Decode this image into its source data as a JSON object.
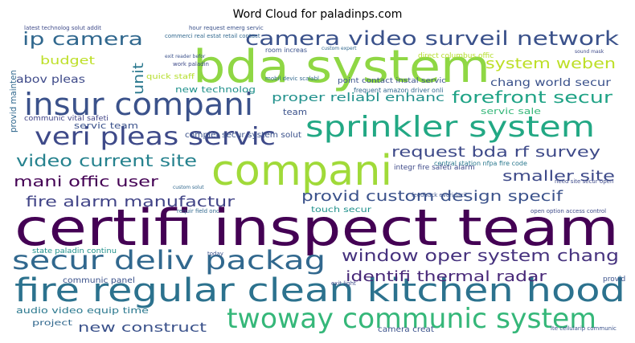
{
  "chart_data": {
    "type": "wordcloud",
    "title": "Word Cloud for paladinps.com",
    "words": [
      {
        "text": "certifi inspect team",
        "color": "#440154"
      },
      {
        "text": "bda system",
        "color": "#8fd744"
      },
      {
        "text": "compani",
        "color": "#a0da39"
      },
      {
        "text": "fire regular clean kitchen hood",
        "color": "#2c728e"
      },
      {
        "text": "insur compani",
        "color": "#3b528b"
      },
      {
        "text": "sprinkler system",
        "color": "#22a884"
      },
      {
        "text": "twoway communic system",
        "color": "#35b779"
      },
      {
        "text": "secur deliv packag",
        "color": "#31688e"
      },
      {
        "text": "veri pleas servic",
        "color": "#3e4a89"
      },
      {
        "text": "camera video surveil network",
        "color": "#3b528b"
      },
      {
        "text": "ip camera",
        "color": "#31688e"
      },
      {
        "text": "forefront secur",
        "color": "#20a386"
      },
      {
        "text": "system weben",
        "color": "#bddf26"
      },
      {
        "text": "request bda rf survey",
        "color": "#3e4a89"
      },
      {
        "text": "video current site",
        "color": "#26828e"
      },
      {
        "text": "provid custom design specif",
        "color": "#3b528b"
      },
      {
        "text": "smaller site",
        "color": "#3e4a89"
      },
      {
        "text": "mani offic user",
        "color": "#440154"
      },
      {
        "text": "fire alarm manufactur",
        "color": "#414487"
      },
      {
        "text": "window oper system chang",
        "color": "#46327e"
      },
      {
        "text": "identifi thermal radar",
        "color": "#482878"
      },
      {
        "text": "new construct",
        "color": "#3b528b"
      },
      {
        "text": "budget",
        "color": "#bddf26"
      },
      {
        "text": "abov pleas",
        "color": "#3e4a89"
      },
      {
        "text": "unit",
        "color": "#2a788e"
      },
      {
        "text": "chang world secur",
        "color": "#3b528b"
      },
      {
        "text": "proper reliabl enhanc",
        "color": "#21918c"
      },
      {
        "text": "new technolog",
        "color": "#21918c"
      },
      {
        "text": "servic team",
        "color": "#3b528b"
      },
      {
        "text": "servic sale",
        "color": "#35b779"
      },
      {
        "text": "quick staff",
        "color": "#b5de2b"
      },
      {
        "text": "communic panel",
        "color": "#3b528b"
      },
      {
        "text": "audio video equip time",
        "color": "#2a788e"
      },
      {
        "text": "project",
        "color": "#31688e"
      },
      {
        "text": "state paladin continu",
        "color": "#21918c"
      },
      {
        "text": "touch secur",
        "color": "#21918c"
      },
      {
        "text": "complet secur system solut",
        "color": "#3b528b"
      },
      {
        "text": "team",
        "color": "#3b528b"
      },
      {
        "text": "provid mainten",
        "color": "#31688e"
      },
      {
        "text": "communic vital safeti",
        "color": "#414487"
      },
      {
        "text": "camera creat",
        "color": "#3b528b"
      },
      {
        "text": "exit light",
        "color": "#3e4a89"
      },
      {
        "text": "point contact instal servic",
        "color": "#3b528b"
      },
      {
        "text": "frequent amazon driver onli",
        "color": "#31688e"
      },
      {
        "text": "integr fire safeti alarm",
        "color": "#3e4a89"
      },
      {
        "text": "central station nfpa fire code",
        "color": "#2a788e"
      },
      {
        "text": "room increas",
        "color": "#3b528b"
      },
      {
        "text": "mobil devic scalabl",
        "color": "#31688e"
      },
      {
        "text": "direct columbus offic",
        "color": "#b5de2b"
      },
      {
        "text": "hour request emerg servic",
        "color": "#3b528b"
      },
      {
        "text": "latest technolog solut addit",
        "color": "#3e4a89"
      },
      {
        "text": "commerci real estat retail contact",
        "color": "#31688e"
      },
      {
        "text": "lte cellularip communic",
        "color": "#3b528b"
      },
      {
        "text": "open option access control",
        "color": "#3e4a89"
      },
      {
        "text": "provid",
        "color": "#3b528b"
      },
      {
        "text": "requir field onc",
        "color": "#31688e"
      },
      {
        "text": "feedback everi facil",
        "color": "#3b528b"
      },
      {
        "text": "need site secur open",
        "color": "#3e4a89"
      },
      {
        "text": "custom expert",
        "color": "#31688e"
      },
      {
        "text": "work paladin",
        "color": "#3e4a89"
      },
      {
        "text": "exit reader befor",
        "color": "#3b528b"
      },
      {
        "text": "custom solut",
        "color": "#31688e"
      },
      {
        "text": "sound mask",
        "color": "#3e4a89"
      },
      {
        "text": "today",
        "color": "#3b528b"
      }
    ]
  }
}
